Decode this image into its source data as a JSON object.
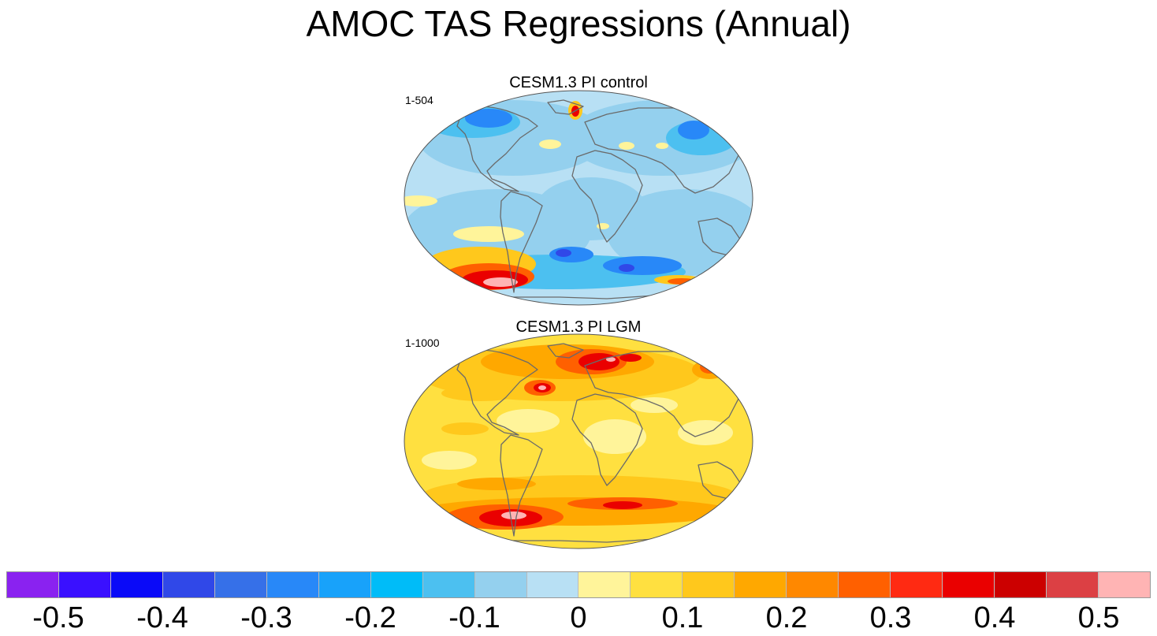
{
  "title": "AMOC TAS Regressions (Annual)",
  "panels": [
    {
      "title": "CESM1.3 PI control",
      "range_label": "1-504",
      "scheme": "cool"
    },
    {
      "title": "CESM1.3 PI LGM",
      "range_label": "1-1000",
      "scheme": "warm"
    }
  ],
  "colorbar": {
    "colors": [
      "#8a22f0",
      "#3a10ff",
      "#0a0af8",
      "#3048e8",
      "#3670e8",
      "#2888f8",
      "#18a2fa",
      "#00bcf8",
      "#4cc0f0",
      "#94d0ee",
      "#b8e0f4",
      "#fff49a",
      "#ffe040",
      "#ffc81c",
      "#ffa800",
      "#ff8800",
      "#ff6000",
      "#ff2a12",
      "#ea0000",
      "#cc0000",
      "#dc4044",
      "#ffb4b4"
    ],
    "labels": [
      "-0.5",
      "-0.4",
      "-0.3",
      "-0.2",
      "-0.1",
      "0",
      "0.1",
      "0.2",
      "0.3",
      "0.4",
      "0.5"
    ],
    "label_values": [
      -0.5,
      -0.4,
      -0.3,
      -0.2,
      -0.1,
      0,
      0.1,
      0.2,
      0.3,
      0.4,
      0.5
    ],
    "min": -0.55,
    "max": 0.55
  }
}
